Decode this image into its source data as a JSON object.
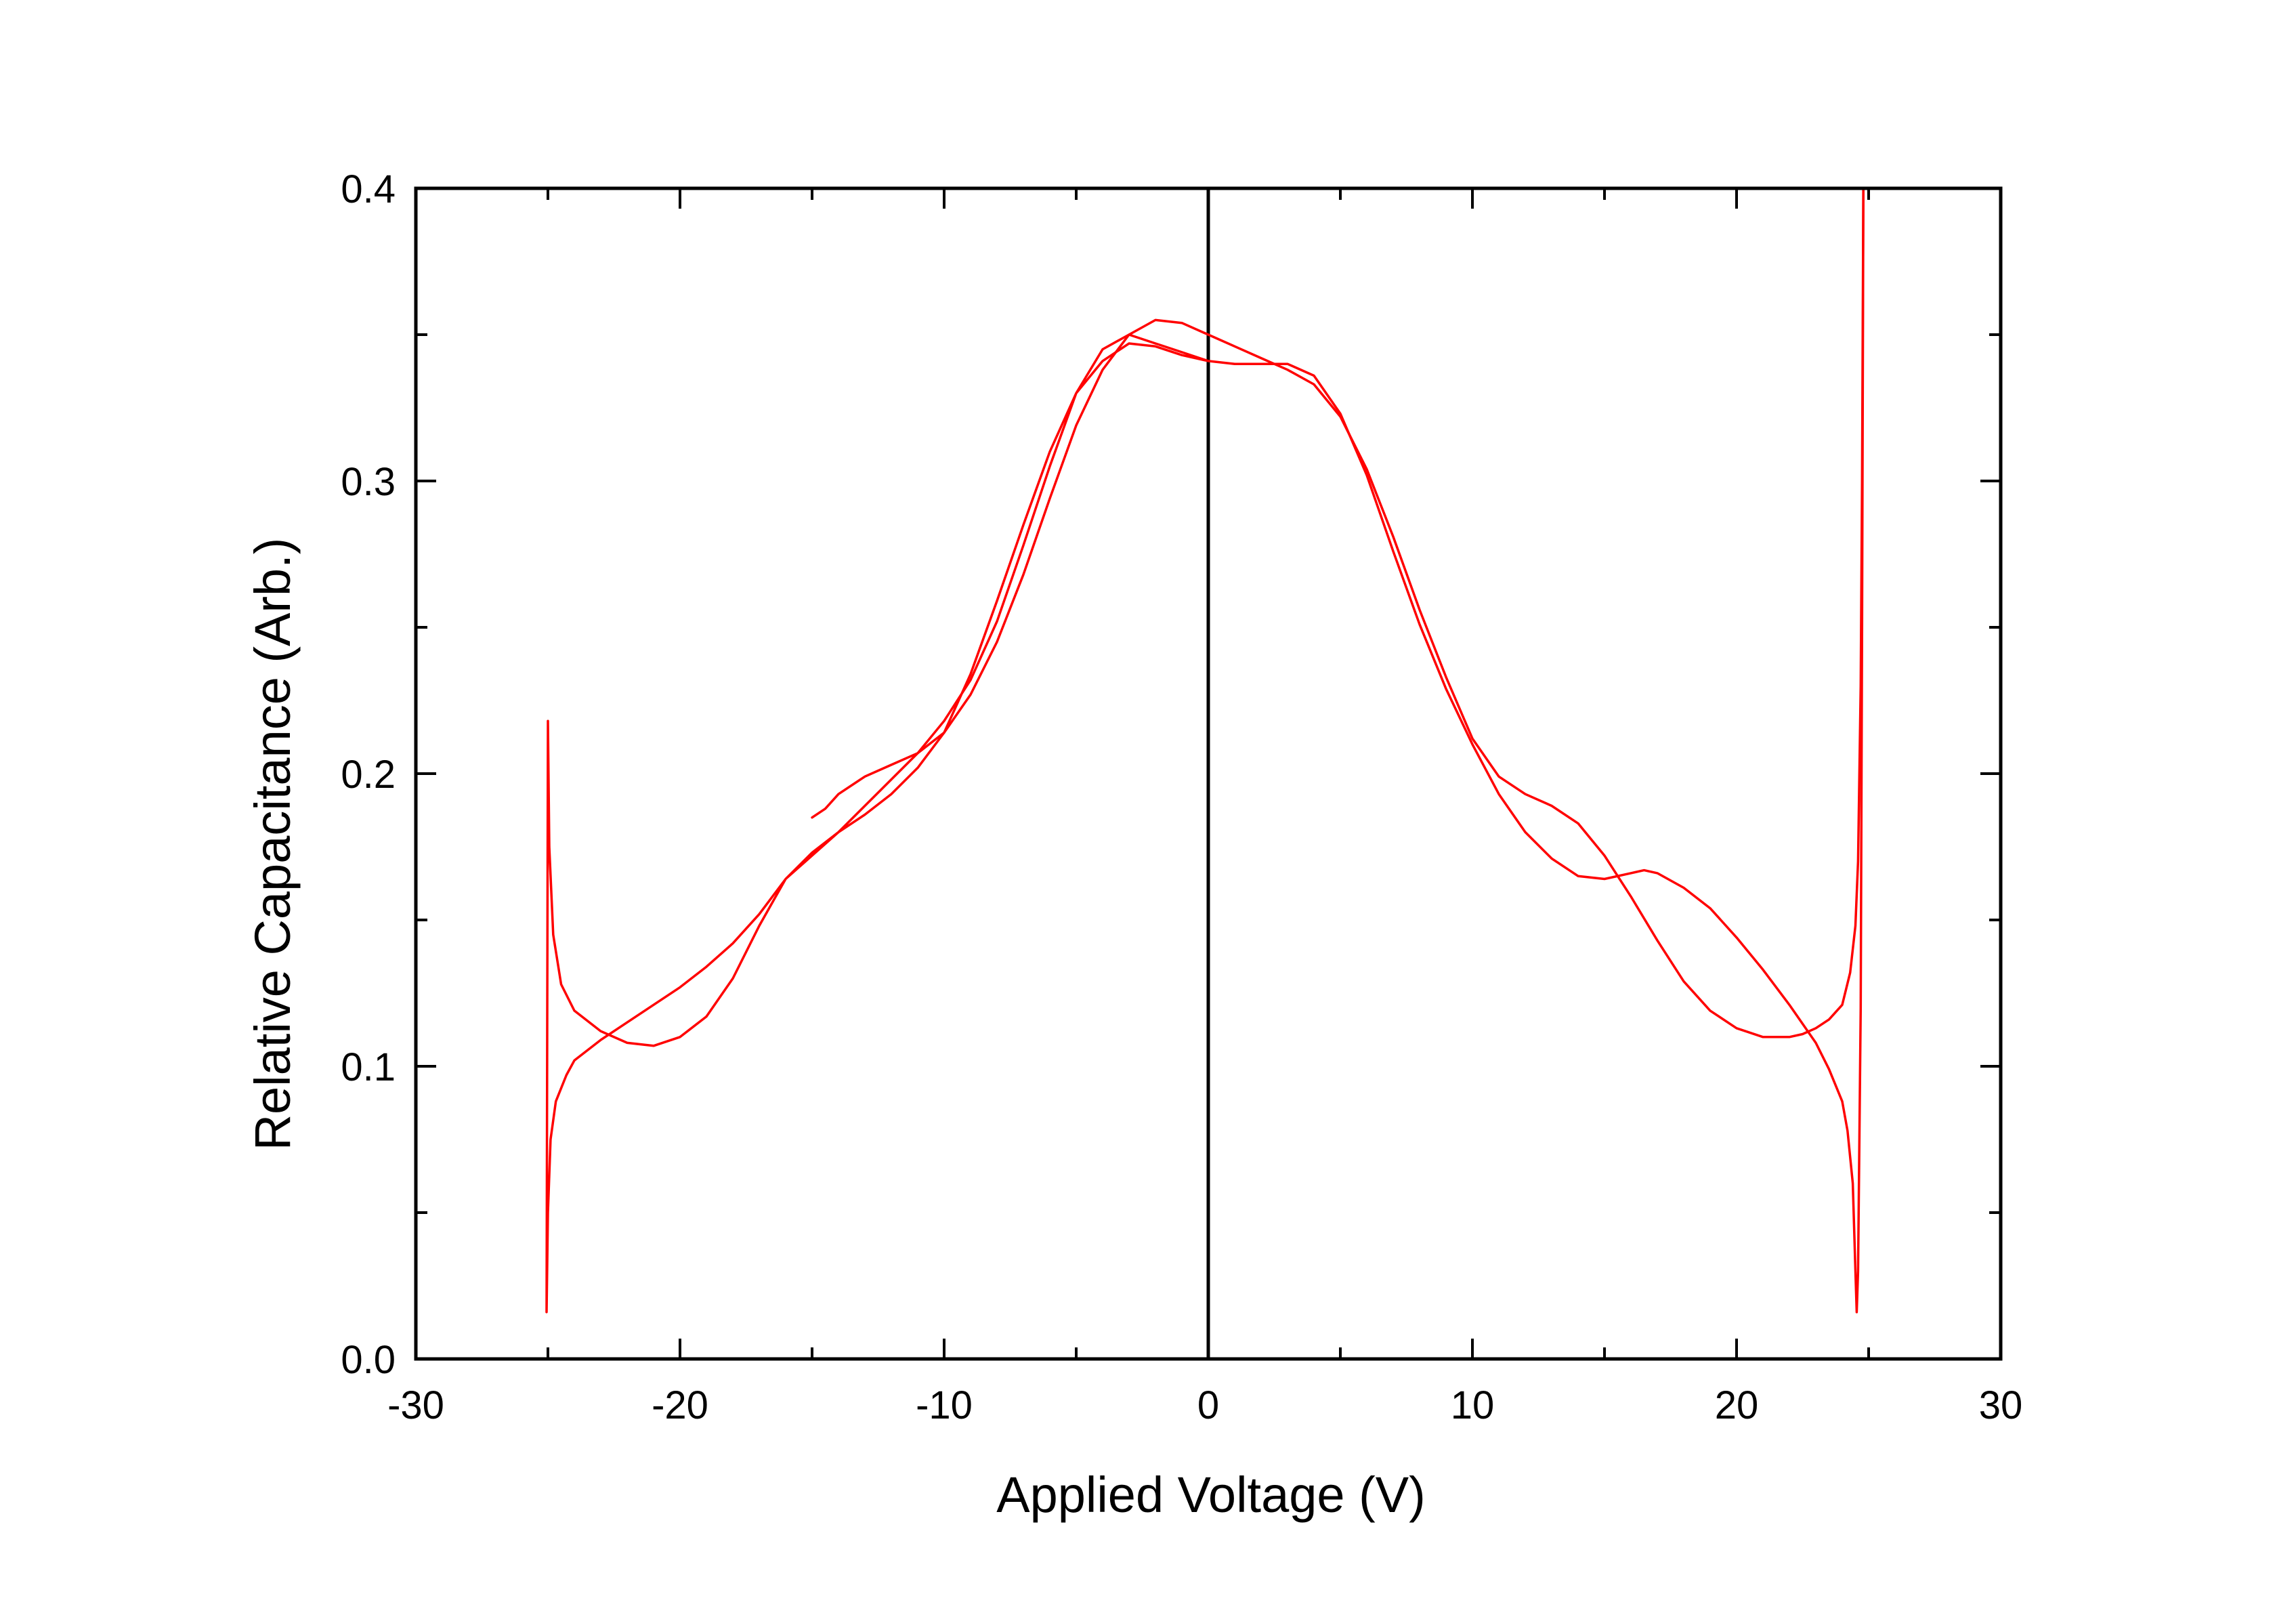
{
  "chart_data": {
    "type": "line",
    "title": "",
    "xlabel": "Applied Voltage (V)",
    "ylabel": "Relative Capacitance (Arb.)",
    "xlim": [
      -30,
      30
    ],
    "ylim": [
      0.0,
      0.4
    ],
    "x_ticks": [
      -30,
      -20,
      -10,
      0,
      10,
      20,
      30
    ],
    "x_tick_labels": [
      "-30",
      "-20",
      "-10",
      "0",
      "10",
      "20",
      "30"
    ],
    "y_ticks": [
      0.0,
      0.1,
      0.2,
      0.3,
      0.4
    ],
    "y_tick_labels": [
      "0.0",
      "0.1",
      "0.2",
      "0.3",
      "0.4"
    ],
    "x_minor_step": 5,
    "y_minor_step": 0.05,
    "grid": false,
    "legend": "none",
    "reference_line_x": 0,
    "line_color": "#ff0000",
    "axis_color": "#000000",
    "series": [
      {
        "values": [
          [
            -15.0,
            0.185
          ],
          [
            -14.5,
            0.188
          ],
          [
            -14.0,
            0.193
          ],
          [
            -13.0,
            0.199
          ],
          [
            -12.0,
            0.203
          ],
          [
            -11.0,
            0.207
          ],
          [
            -10.0,
            0.214
          ],
          [
            -9.0,
            0.227
          ],
          [
            -8.0,
            0.245
          ],
          [
            -7.0,
            0.268
          ],
          [
            -6.0,
            0.294
          ],
          [
            -5.0,
            0.319
          ],
          [
            -4.0,
            0.338
          ],
          [
            -3.0,
            0.35
          ],
          [
            -2.0,
            0.355
          ],
          [
            -1.0,
            0.354
          ],
          [
            0.0,
            0.35
          ],
          [
            1.0,
            0.346
          ],
          [
            2.0,
            0.342
          ],
          [
            3.0,
            0.338
          ],
          [
            4.0,
            0.333
          ],
          [
            5.0,
            0.322
          ],
          [
            6.0,
            0.304
          ],
          [
            7.0,
            0.281
          ],
          [
            8.0,
            0.256
          ],
          [
            9.0,
            0.233
          ],
          [
            10.0,
            0.212
          ],
          [
            11.0,
            0.199
          ],
          [
            12.0,
            0.193
          ],
          [
            13.0,
            0.189
          ],
          [
            14.0,
            0.183
          ],
          [
            15.0,
            0.172
          ],
          [
            16.0,
            0.158
          ],
          [
            17.0,
            0.143
          ],
          [
            18.0,
            0.129
          ],
          [
            19.0,
            0.119
          ],
          [
            20.0,
            0.113
          ],
          [
            21.0,
            0.11
          ],
          [
            22.0,
            0.11
          ],
          [
            22.5,
            0.111
          ],
          [
            23.0,
            0.113
          ],
          [
            23.5,
            0.116
          ],
          [
            24.0,
            0.121
          ],
          [
            24.3,
            0.132
          ],
          [
            24.5,
            0.148
          ],
          [
            24.6,
            0.17
          ],
          [
            24.7,
            0.23
          ],
          [
            24.75,
            0.3
          ],
          [
            24.8,
            0.4
          ]
        ]
      },
      {
        "values": [
          [
            24.8,
            0.4
          ],
          [
            24.75,
            0.25
          ],
          [
            24.7,
            0.12
          ],
          [
            24.6,
            0.03
          ],
          [
            24.55,
            0.016
          ],
          [
            24.5,
            0.03
          ],
          [
            24.4,
            0.06
          ],
          [
            24.2,
            0.078
          ],
          [
            24.0,
            0.088
          ],
          [
            23.5,
            0.099
          ],
          [
            23.0,
            0.108
          ],
          [
            22.0,
            0.121
          ],
          [
            21.0,
            0.133
          ],
          [
            20.0,
            0.144
          ],
          [
            19.0,
            0.154
          ],
          [
            18.0,
            0.161
          ],
          [
            17.0,
            0.166
          ],
          [
            16.5,
            0.167
          ],
          [
            16.0,
            0.166
          ],
          [
            15.0,
            0.164
          ],
          [
            14.0,
            0.165
          ],
          [
            13.0,
            0.171
          ],
          [
            12.0,
            0.18
          ],
          [
            11.0,
            0.193
          ],
          [
            10.0,
            0.21
          ],
          [
            9.0,
            0.229
          ],
          [
            8.0,
            0.251
          ],
          [
            7.0,
            0.276
          ],
          [
            6.0,
            0.302
          ],
          [
            5.0,
            0.323
          ],
          [
            4.0,
            0.336
          ],
          [
            3.0,
            0.34
          ],
          [
            2.0,
            0.34
          ],
          [
            1.0,
            0.34
          ],
          [
            0.0,
            0.341
          ],
          [
            -1.0,
            0.344
          ],
          [
            -2.0,
            0.347
          ],
          [
            -3.0,
            0.35
          ],
          [
            -4.0,
            0.345
          ],
          [
            -5.0,
            0.33
          ],
          [
            -6.0,
            0.305
          ],
          [
            -7.0,
            0.278
          ],
          [
            -8.0,
            0.252
          ],
          [
            -9.0,
            0.232
          ],
          [
            -10.0,
            0.218
          ],
          [
            -11.0,
            0.207
          ],
          [
            -12.0,
            0.198
          ],
          [
            -13.0,
            0.189
          ],
          [
            -14.0,
            0.18
          ],
          [
            -15.0,
            0.172
          ],
          [
            -16.0,
            0.164
          ],
          [
            -17.0,
            0.148
          ],
          [
            -18.0,
            0.13
          ],
          [
            -19.0,
            0.117
          ],
          [
            -20.0,
            0.11
          ],
          [
            -21.0,
            0.107
          ],
          [
            -22.0,
            0.108
          ],
          [
            -23.0,
            0.112
          ],
          [
            -24.0,
            0.119
          ],
          [
            -24.5,
            0.128
          ],
          [
            -24.8,
            0.145
          ],
          [
            -24.95,
            0.175
          ],
          [
            -25.0,
            0.218
          ],
          [
            -25.05,
            0.016
          ],
          [
            -25.0,
            0.05
          ],
          [
            -24.9,
            0.075
          ],
          [
            -24.7,
            0.088
          ],
          [
            -24.3,
            0.097
          ],
          [
            -24.0,
            0.102
          ],
          [
            -23.0,
            0.109
          ],
          [
            -22.0,
            0.115
          ],
          [
            -21.0,
            0.121
          ],
          [
            -20.0,
            0.127
          ],
          [
            -19.0,
            0.134
          ],
          [
            -18.0,
            0.142
          ],
          [
            -17.0,
            0.152
          ],
          [
            -16.0,
            0.164
          ],
          [
            -15.0,
            0.173
          ],
          [
            -14.0,
            0.18
          ],
          [
            -13.0,
            0.186
          ],
          [
            -12.0,
            0.193
          ],
          [
            -11.0,
            0.202
          ],
          [
            -10.0,
            0.214
          ],
          [
            -9.0,
            0.234
          ],
          [
            -8.0,
            0.259
          ],
          [
            -7.0,
            0.285
          ],
          [
            -6.0,
            0.31
          ],
          [
            -5.0,
            0.33
          ],
          [
            -4.0,
            0.341
          ],
          [
            -3.0,
            0.347
          ],
          [
            -2.0,
            0.346
          ],
          [
            -1.0,
            0.343
          ],
          [
            0.0,
            0.341
          ]
        ]
      }
    ]
  }
}
